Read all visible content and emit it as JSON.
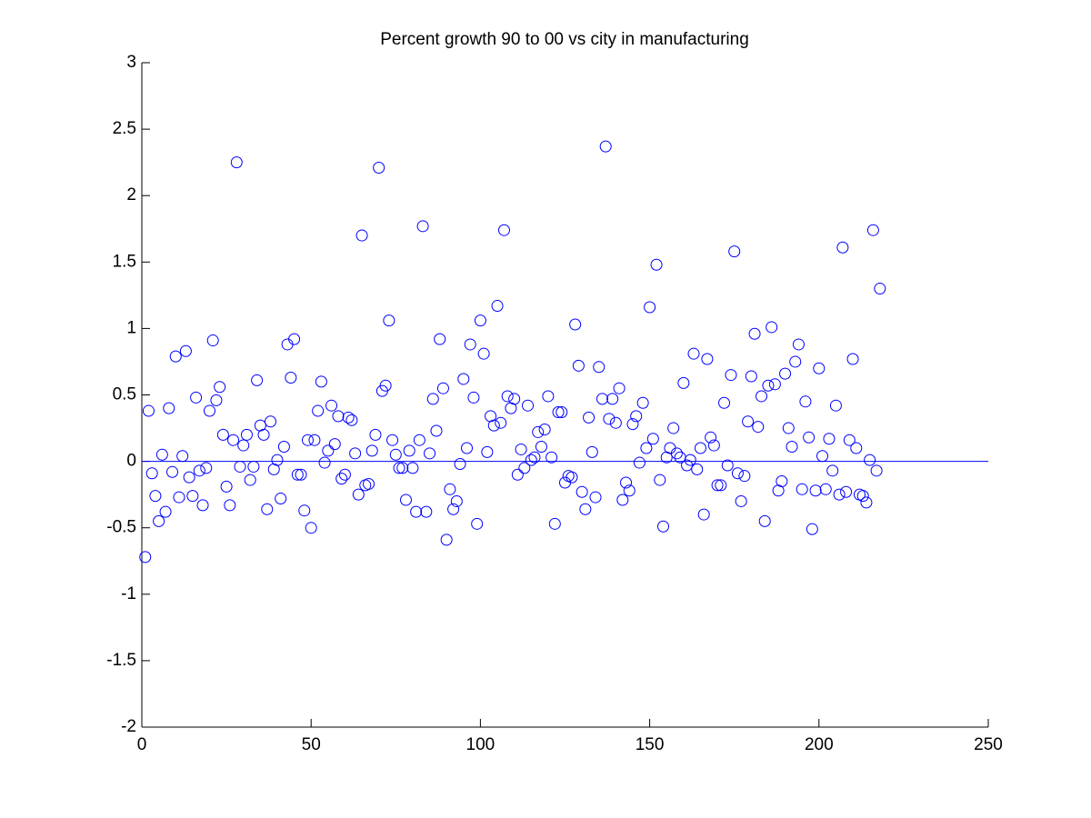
{
  "chart_data": {
    "type": "scatter",
    "title": "Percent growth 90 to 00 vs city in manufacturing",
    "color": "#0000ff",
    "xlim": [
      0,
      250
    ],
    "xticks": [
      0,
      50,
      100,
      150,
      200,
      250
    ],
    "ylim": [
      -2,
      3
    ],
    "yticks": [
      -2,
      -1.5,
      -1,
      -0.5,
      0,
      0.5,
      1,
      1.5,
      2,
      2.5,
      3
    ],
    "reference_line": 0,
    "x": [
      1,
      2,
      3,
      4,
      5,
      6,
      7,
      8,
      9,
      10,
      11,
      12,
      13,
      14,
      15,
      16,
      17,
      18,
      19,
      20,
      21,
      22,
      23,
      24,
      25,
      26,
      27,
      28,
      29,
      30,
      31,
      32,
      33,
      34,
      35,
      36,
      37,
      38,
      39,
      40,
      41,
      42,
      43,
      44,
      45,
      46,
      47,
      48,
      49,
      50,
      51,
      52,
      53,
      54,
      55,
      56,
      57,
      58,
      59,
      60,
      61,
      62,
      63,
      64,
      65,
      66,
      67,
      68,
      69,
      70,
      71,
      72,
      73,
      74,
      75,
      76,
      77,
      78,
      79,
      80,
      81,
      82,
      83,
      84,
      85,
      86,
      87,
      88,
      89,
      90,
      91,
      92,
      93,
      94,
      95,
      96,
      97,
      98,
      99,
      100,
      101,
      102,
      103,
      104,
      105,
      106,
      107,
      108,
      109,
      110,
      111,
      112,
      113,
      114,
      115,
      116,
      117,
      118,
      119,
      120,
      121,
      122,
      123,
      124,
      125,
      126,
      127,
      128,
      129,
      130,
      131,
      132,
      133,
      134,
      135,
      136,
      137,
      138,
      139,
      140,
      141,
      142,
      143,
      144,
      145,
      146,
      147,
      148,
      149,
      150,
      151,
      152,
      153,
      154,
      155,
      156,
      157,
      158,
      159,
      160,
      161,
      162,
      163,
      164,
      165,
      166,
      167,
      168,
      169,
      170,
      171,
      172,
      173,
      174,
      175,
      176,
      177,
      178,
      179,
      180,
      181,
      182,
      183,
      184,
      185,
      186,
      187,
      188,
      189,
      190,
      191,
      192,
      193,
      194,
      195,
      196,
      197,
      198,
      199,
      200,
      201,
      202,
      203,
      204,
      205,
      206,
      207,
      208,
      209,
      210,
      211,
      212,
      213,
      214,
      215,
      216,
      217,
      218
    ],
    "values": [
      -0.72,
      0.38,
      -0.09,
      -0.26,
      -0.45,
      0.05,
      -0.38,
      0.4,
      -0.08,
      0.79,
      -0.27,
      0.04,
      0.83,
      -0.12,
      -0.26,
      0.48,
      -0.07,
      -0.33,
      -0.05,
      0.38,
      0.91,
      0.46,
      0.56,
      0.2,
      -0.19,
      -0.33,
      0.16,
      2.25,
      -0.04,
      0.12,
      0.2,
      -0.14,
      -0.04,
      0.61,
      0.27,
      0.2,
      -0.36,
      0.3,
      -0.06,
      0.01,
      -0.28,
      0.11,
      0.88,
      0.63,
      0.92,
      -0.1,
      -0.1,
      -0.37,
      0.16,
      -0.5,
      0.16,
      0.38,
      0.6,
      -0.01,
      0.08,
      0.42,
      0.13,
      0.34,
      -0.13,
      -0.1,
      0.33,
      0.31,
      0.06,
      -0.25,
      1.7,
      -0.18,
      -0.17,
      0.08,
      0.2,
      2.21,
      0.53,
      0.57,
      1.06,
      0.16,
      0.05,
      -0.05,
      -0.05,
      -0.29,
      0.08,
      -0.05,
      -0.38,
      0.16,
      1.77,
      -0.38,
      0.06,
      0.47,
      0.23,
      0.92,
      0.55,
      -0.59,
      -0.21,
      -0.36,
      -0.3,
      -0.02,
      0.62,
      0.1,
      0.88,
      0.48,
      -0.47,
      1.06,
      0.81,
      0.07,
      0.34,
      0.27,
      1.17,
      0.29,
      1.74,
      0.49,
      0.4,
      0.47,
      -0.1,
      0.09,
      -0.05,
      0.42,
      0.01,
      0.03,
      0.22,
      0.11,
      0.24,
      0.49,
      0.03,
      -0.47,
      0.37,
      0.37,
      -0.16,
      -0.11,
      -0.12,
      1.03,
      0.72,
      -0.23,
      -0.36,
      0.33,
      0.07,
      -0.27,
      0.71,
      0.47,
      2.37,
      0.32,
      0.47,
      0.29,
      0.55,
      -0.29,
      -0.16,
      -0.22,
      0.28,
      0.34,
      -0.01,
      0.44,
      0.1,
      1.16,
      0.17,
      1.48,
      -0.14,
      -0.49,
      0.03,
      0.1,
      0.25,
      0.06,
      0.03,
      0.59,
      -0.03,
      0.01,
      0.81,
      -0.06,
      0.1,
      -0.4,
      0.77,
      0.18,
      0.12,
      -0.18,
      -0.18,
      0.44,
      -0.03,
      0.65,
      1.58,
      -0.09,
      -0.3,
      -0.11,
      0.3,
      0.64,
      0.96,
      0.26,
      0.49,
      -0.45,
      0.57,
      1.01,
      0.58,
      -0.22,
      -0.15,
      0.66,
      0.25,
      0.11,
      0.75,
      0.88,
      -0.21,
      0.45,
      0.18,
      -0.51,
      -0.22,
      0.7,
      0.04,
      -0.21,
      0.17,
      -0.07,
      0.42,
      -0.25,
      1.61,
      -0.23,
      0.16,
      0.77,
      0.1,
      -0.25,
      -0.26,
      -0.31,
      0.01,
      1.74,
      -0.07,
      1.3
    ]
  }
}
